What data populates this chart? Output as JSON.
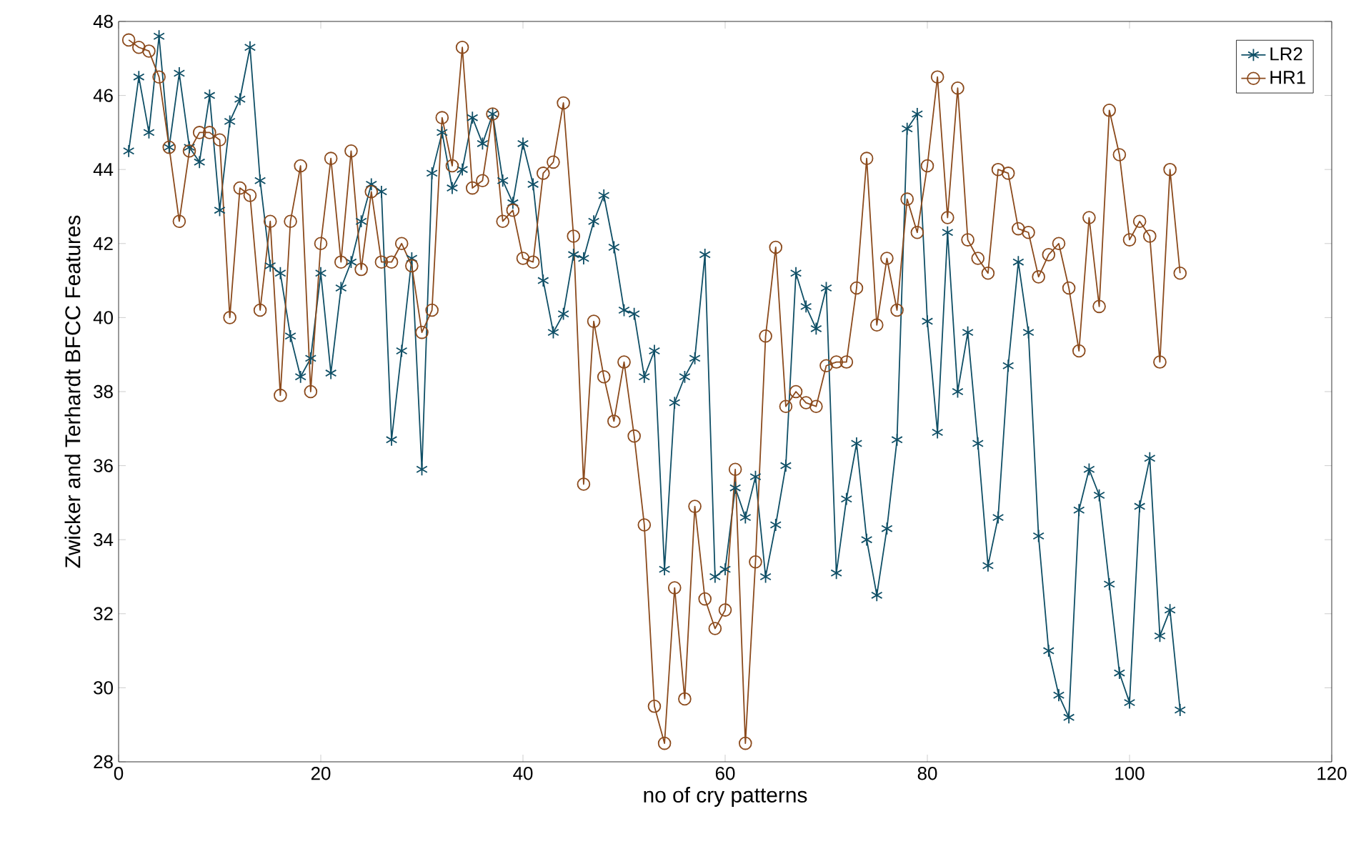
{
  "chart_data": {
    "type": "line",
    "xlabel": "no of cry patterns",
    "ylabel": "Zwicker and Terhardt  BFCC Features",
    "x": [
      1,
      2,
      3,
      4,
      5,
      6,
      7,
      8,
      9,
      10,
      11,
      12,
      13,
      14,
      15,
      16,
      17,
      18,
      19,
      20,
      21,
      22,
      23,
      24,
      25,
      26,
      27,
      28,
      29,
      30,
      31,
      32,
      33,
      34,
      35,
      36,
      37,
      38,
      39,
      40,
      41,
      42,
      43,
      44,
      45,
      46,
      47,
      48,
      49,
      50,
      51,
      52,
      53,
      54,
      55,
      56,
      57,
      58,
      59,
      60,
      61,
      62,
      63,
      64,
      65,
      66,
      67,
      68,
      69,
      70,
      71,
      72,
      73,
      74,
      75,
      76,
      77,
      78,
      79,
      80,
      81,
      82,
      83,
      84,
      85,
      86,
      87,
      88,
      89,
      90,
      91,
      92,
      93,
      94,
      95,
      96,
      97,
      98,
      99,
      100,
      101,
      102,
      103,
      104,
      105
    ],
    "series": [
      {
        "name": "LR2",
        "color": "#0f4f66",
        "marker": "cross",
        "values": [
          44.5,
          46.5,
          45.0,
          47.6,
          44.6,
          46.6,
          44.6,
          44.2,
          46.0,
          42.9,
          45.3,
          45.9,
          47.3,
          43.7,
          41.4,
          41.2,
          39.5,
          38.4,
          38.9,
          41.2,
          38.5,
          40.8,
          41.5,
          42.6,
          43.6,
          43.4,
          36.7,
          39.1,
          41.6,
          35.9,
          43.9,
          45.0,
          43.5,
          44.0,
          45.4,
          44.7,
          45.5,
          43.7,
          43.1,
          44.7,
          43.6,
          41.0,
          39.6,
          40.1,
          41.7,
          41.6,
          42.6,
          43.3,
          41.9,
          40.2,
          40.1,
          38.4,
          39.1,
          33.2,
          37.7,
          38.4,
          38.9,
          41.7,
          33.0,
          33.2,
          35.4,
          34.6,
          35.7,
          33.0,
          34.4,
          36.0,
          41.2,
          40.3,
          39.7,
          40.8,
          33.1,
          35.1,
          36.6,
          34.0,
          32.5,
          34.3,
          36.7,
          45.1,
          45.5,
          39.9,
          36.9,
          42.3,
          38.0,
          39.6,
          36.6,
          33.3,
          34.6,
          38.7,
          41.5,
          39.6,
          34.1,
          31.0,
          29.8,
          29.2,
          34.8,
          35.9,
          35.2,
          32.8,
          30.4,
          29.6,
          34.9,
          36.2,
          31.4,
          32.1,
          29.4
        ]
      },
      {
        "name": "HR1",
        "color": "#8b4a1c",
        "marker": "circle",
        "values": [
          47.5,
          47.3,
          47.2,
          46.5,
          44.6,
          42.6,
          44.5,
          45.0,
          45.0,
          44.8,
          40.0,
          43.5,
          43.3,
          40.2,
          42.6,
          37.9,
          42.6,
          44.1,
          38.0,
          42.0,
          44.3,
          41.5,
          44.5,
          41.3,
          43.4,
          41.5,
          41.5,
          42.0,
          41.4,
          39.6,
          40.2,
          45.4,
          44.1,
          47.3,
          43.5,
          43.7,
          45.5,
          42.6,
          42.9,
          41.6,
          41.5,
          43.9,
          44.2,
          45.8,
          42.2,
          35.5,
          39.9,
          38.4,
          37.2,
          38.8,
          36.8,
          34.4,
          29.5,
          28.5,
          32.7,
          29.7,
          34.9,
          32.4,
          31.6,
          32.1,
          35.9,
          28.5,
          33.4,
          39.5,
          41.9,
          37.6,
          38.0,
          37.7,
          37.6,
          38.7,
          38.8,
          38.8,
          40.8,
          44.3,
          39.8,
          41.6,
          40.2,
          43.2,
          42.3,
          44.1,
          46.5,
          42.7,
          46.2,
          42.1,
          41.6,
          41.2,
          44.0,
          43.9,
          42.4,
          42.3,
          41.1,
          41.7,
          42.0,
          40.8,
          39.1,
          42.7,
          40.3,
          45.6,
          44.4,
          42.1,
          42.6,
          42.2,
          38.8,
          44.0,
          41.2
        ]
      }
    ],
    "xlim": [
      0,
      120
    ],
    "xticks": [
      0,
      20,
      40,
      60,
      80,
      100,
      120
    ],
    "ylim": [
      28,
      48
    ],
    "yticks": [
      28,
      30,
      32,
      34,
      36,
      38,
      40,
      42,
      44,
      46,
      48
    ],
    "grid": false,
    "legend": "top right",
    "line_style": "solid"
  }
}
